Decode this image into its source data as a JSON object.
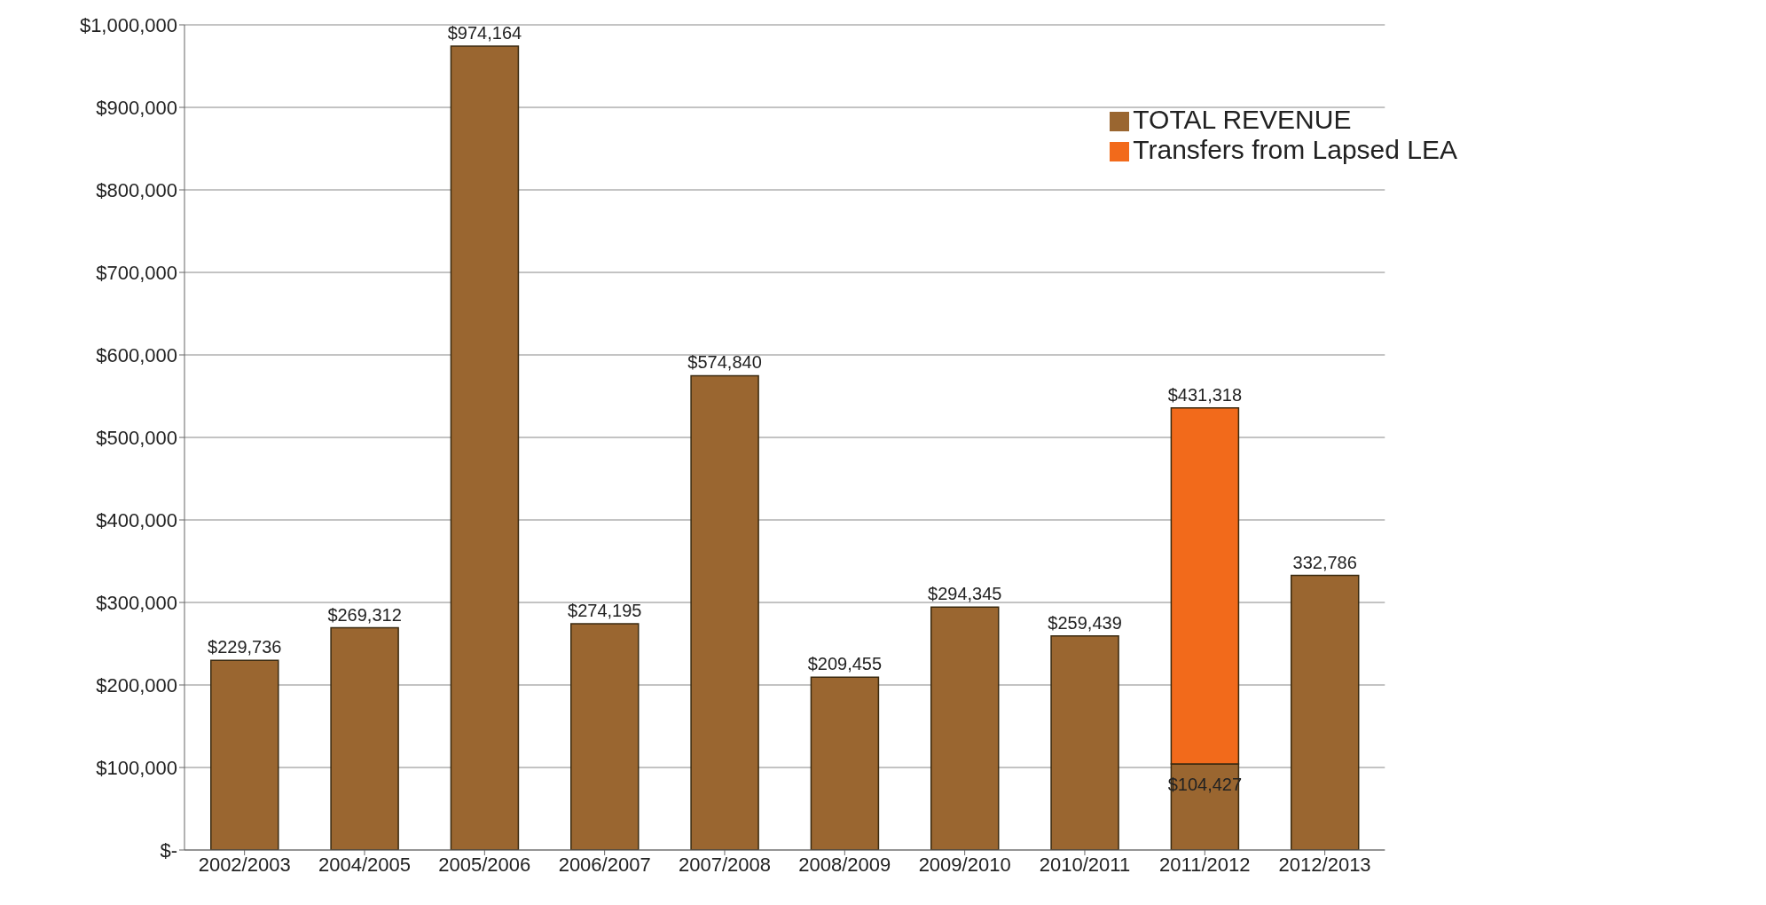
{
  "chart_data": {
    "type": "bar",
    "stacked": true,
    "categories": [
      "2002/2003",
      "2004/2005",
      "2005/2006",
      "2006/2007",
      "2007/2008",
      "2008/2009",
      "2009/2010",
      "2010/2011",
      "2011/2012",
      "2012/2013"
    ],
    "series": [
      {
        "name": "TOTAL REVENUE",
        "color": "#9a6630",
        "values": [
          229736,
          269312,
          974164,
          274195,
          574840,
          209455,
          294345,
          259439,
          104427,
          332786
        ],
        "value_labels": [
          "$229,736",
          "$269,312",
          "$974,164",
          "$274,195",
          "$574,840",
          "$209,455",
          "$294,345",
          "$259,439",
          "$104,427",
          "332,786"
        ]
      },
      {
        "name": "Transfers from Lapsed LEA",
        "color": "#f26a1b",
        "values": [
          null,
          null,
          null,
          null,
          null,
          null,
          null,
          null,
          431318,
          null
        ],
        "value_labels": [
          null,
          null,
          null,
          null,
          null,
          null,
          null,
          null,
          "$431,318",
          null
        ]
      }
    ],
    "ylim": [
      0,
      1000000
    ],
    "yticks": [
      {
        "value": 0,
        "label": "$-"
      },
      {
        "value": 100000,
        "label": "$100,000"
      },
      {
        "value": 200000,
        "label": "$200,000"
      },
      {
        "value": 300000,
        "label": "$300,000"
      },
      {
        "value": 400000,
        "label": "$400,000"
      },
      {
        "value": 500000,
        "label": "$500,000"
      },
      {
        "value": 600000,
        "label": "$600,000"
      },
      {
        "value": 700000,
        "label": "$700,000"
      },
      {
        "value": 800000,
        "label": "$800,000"
      },
      {
        "value": 900000,
        "label": "$900,000"
      },
      {
        "value": 1000000,
        "label": "$1,000,000"
      }
    ],
    "grid": "y",
    "legend": "top right"
  }
}
